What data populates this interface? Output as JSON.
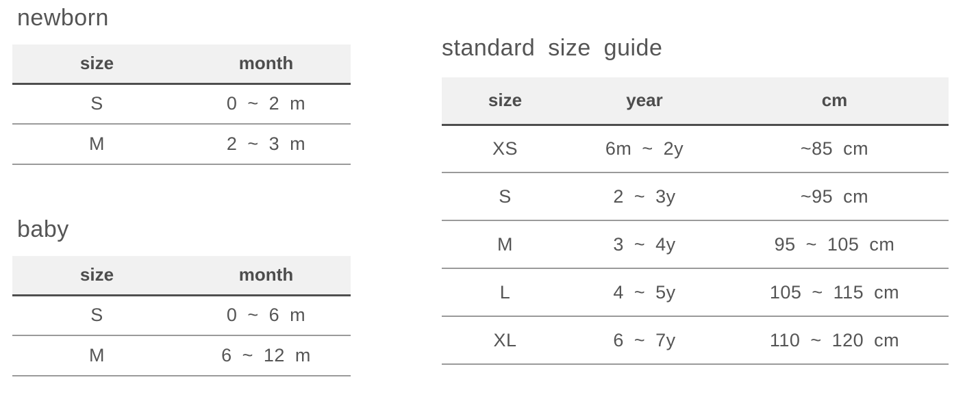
{
  "colors": {
    "header_bg": "#f1f1f1",
    "header_border": "#4e4e4e",
    "row_border": "#9a9a9a",
    "text": "#555555",
    "header_text": "#4d4d4d",
    "title": "#555555",
    "page_bg": "#ffffff"
  },
  "tables": {
    "newborn": {
      "title": "newborn",
      "columns": [
        "size",
        "month"
      ],
      "rows": [
        [
          "S",
          "0 ~ 2 m"
        ],
        [
          "M",
          "2 ~ 3 m"
        ]
      ]
    },
    "baby": {
      "title": "baby",
      "columns": [
        "size",
        "month"
      ],
      "rows": [
        [
          "S",
          "0 ~ 6 m"
        ],
        [
          "M",
          "6 ~ 12 m"
        ]
      ]
    },
    "standard": {
      "title": "standard size guide",
      "columns": [
        "size",
        "year",
        "cm"
      ],
      "rows": [
        [
          "XS",
          "6m ~ 2y",
          "~85 cm"
        ],
        [
          "S",
          "2 ~ 3y",
          "~95 cm"
        ],
        [
          "M",
          "3 ~ 4y",
          "95 ~ 105 cm"
        ],
        [
          "L",
          "4 ~ 5y",
          "105 ~ 115 cm"
        ],
        [
          "XL",
          "6 ~ 7y",
          "110 ~ 120 cm"
        ]
      ]
    }
  }
}
